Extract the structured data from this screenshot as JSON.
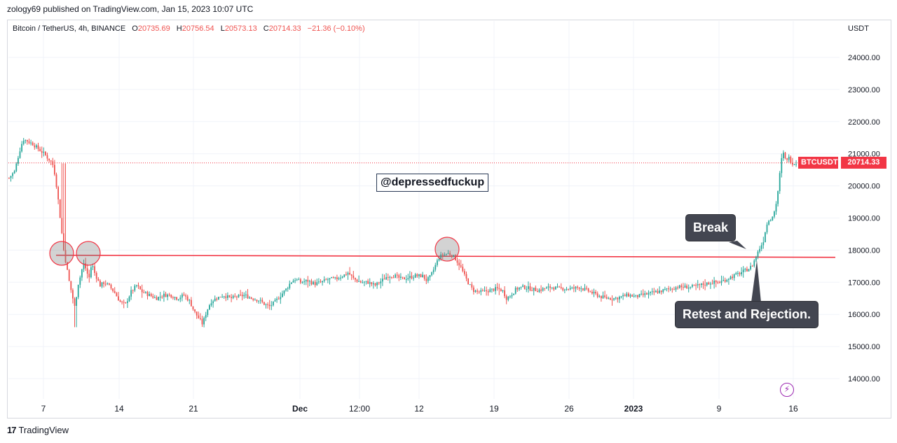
{
  "header": {
    "published": "zology69 published on TradingView.com, Jan 15, 2023 10:07 UTC"
  },
  "legend": {
    "symbol": "Bitcoin / TetherUS, 4h, BINANCE",
    "open_label": "O",
    "open": "20735.69",
    "high_label": "H",
    "high": "20756.54",
    "low_label": "L",
    "low": "20573.13",
    "close_label": "C",
    "close": "20714.33",
    "change": "−21.36 (−0.10%)"
  },
  "colors": {
    "up": "#26a69a",
    "down": "#ef5350",
    "level_line": "#f23645",
    "price_tag": "#f23645",
    "grid": "#f0f3fa"
  },
  "annotations": {
    "watermark": "@depressedfuckup",
    "break": "Break",
    "retest": "Retest and Rejection."
  },
  "price_tags": {
    "symbol_tag": "BTCUSDT",
    "last_price": "20714.33"
  },
  "footer": {
    "brand": "TradingView",
    "logo": "17"
  },
  "icons": {
    "lightning": "lightning-icon"
  },
  "chart_data": {
    "type": "candlestick",
    "y_axis_unit": "USDT",
    "ylim": [
      13700,
      25200
    ],
    "y_ticks": [
      "24000.00",
      "23000.00",
      "22000.00",
      "21000.00",
      "20000.00",
      "19000.00",
      "18000.00",
      "17000.00",
      "16000.00",
      "15000.00",
      "14000.00"
    ],
    "x_ticks": [
      "7",
      "14",
      "21",
      "Dec",
      "12:00",
      "12",
      "19",
      "26",
      "2023",
      "9",
      "16"
    ],
    "x_ticks_bold": [
      "Dec",
      "2023"
    ],
    "resistance_level": 17820,
    "last_price": 20714.33,
    "grid": true,
    "path_points": [
      [
        0,
        20250
      ],
      [
        8,
        20450
      ],
      [
        14,
        21000
      ],
      [
        20,
        21450
      ],
      [
        26,
        21400
      ],
      [
        34,
        21300
      ],
      [
        42,
        21150
      ],
      [
        50,
        21000
      ],
      [
        56,
        20850
      ],
      [
        62,
        20700
      ],
      [
        66,
        20300
      ],
      [
        70,
        19600
      ],
      [
        74,
        18800
      ],
      [
        78,
        18000
      ],
      [
        82,
        17500
      ],
      [
        86,
        17000
      ],
      [
        90,
        16600
      ],
      [
        94,
        16200
      ],
      [
        98,
        16900
      ],
      [
        102,
        17200
      ],
      [
        106,
        17600
      ],
      [
        110,
        17400
      ],
      [
        114,
        17100
      ],
      [
        118,
        17600
      ],
      [
        122,
        17300
      ],
      [
        126,
        17100
      ],
      [
        130,
        16900
      ],
      [
        136,
        17000
      ],
      [
        142,
        16900
      ],
      [
        150,
        16700
      ],
      [
        158,
        16400
      ],
      [
        166,
        16300
      ],
      [
        174,
        16700
      ],
      [
        182,
        16900
      ],
      [
        190,
        16700
      ],
      [
        200,
        16600
      ],
      [
        210,
        16500
      ],
      [
        220,
        16600
      ],
      [
        230,
        16600
      ],
      [
        240,
        16500
      ],
      [
        250,
        16600
      ],
      [
        258,
        16400
      ],
      [
        264,
        16100
      ],
      [
        270,
        15900
      ],
      [
        276,
        15700
      ],
      [
        282,
        16100
      ],
      [
        288,
        16400
      ],
      [
        296,
        16500
      ],
      [
        306,
        16600
      ],
      [
        316,
        16500
      ],
      [
        326,
        16550
      ],
      [
        336,
        16600
      ],
      [
        346,
        16500
      ],
      [
        356,
        16450
      ],
      [
        366,
        16300
      ],
      [
        372,
        16250
      ],
      [
        380,
        16400
      ],
      [
        388,
        16600
      ],
      [
        396,
        16800
      ],
      [
        402,
        17000
      ],
      [
        408,
        17100
      ],
      [
        416,
        17000
      ],
      [
        426,
        17050
      ],
      [
        436,
        16950
      ],
      [
        446,
        17000
      ],
      [
        456,
        17100
      ],
      [
        466,
        17100
      ],
      [
        476,
        17200
      ],
      [
        484,
        17300
      ],
      [
        492,
        17100
      ],
      [
        502,
        17000
      ],
      [
        512,
        17000
      ],
      [
        522,
        16900
      ],
      [
        532,
        17050
      ],
      [
        540,
        17200
      ],
      [
        550,
        17200
      ],
      [
        560,
        17100
      ],
      [
        570,
        17150
      ],
      [
        580,
        17200
      ],
      [
        590,
        17200
      ],
      [
        596,
        17050
      ],
      [
        602,
        17200
      ],
      [
        608,
        17500
      ],
      [
        614,
        17800
      ],
      [
        620,
        17850
      ],
      [
        626,
        17900
      ],
      [
        632,
        17850
      ],
      [
        638,
        17700
      ],
      [
        644,
        17500
      ],
      [
        650,
        17200
      ],
      [
        656,
        16950
      ],
      [
        662,
        16750
      ],
      [
        668,
        16700
      ],
      [
        676,
        16700
      ],
      [
        686,
        16750
      ],
      [
        696,
        16800
      ],
      [
        704,
        16750
      ],
      [
        710,
        16500
      ],
      [
        716,
        16600
      ],
      [
        724,
        16800
      ],
      [
        734,
        16850
      ],
      [
        744,
        16800
      ],
      [
        754,
        16750
      ],
      [
        764,
        16800
      ],
      [
        774,
        16850
      ],
      [
        784,
        16800
      ],
      [
        794,
        16800
      ],
      [
        804,
        16800
      ],
      [
        814,
        16850
      ],
      [
        824,
        16750
      ],
      [
        834,
        16650
      ],
      [
        844,
        16550
      ],
      [
        854,
        16500
      ],
      [
        864,
        16500
      ],
      [
        874,
        16550
      ],
      [
        884,
        16600
      ],
      [
        894,
        16550
      ],
      [
        904,
        16600
      ],
      [
        914,
        16650
      ],
      [
        924,
        16700
      ],
      [
        934,
        16750
      ],
      [
        944,
        16800
      ],
      [
        954,
        16850
      ],
      [
        964,
        16850
      ],
      [
        974,
        16850
      ],
      [
        984,
        16900
      ],
      [
        994,
        16950
      ],
      [
        1004,
        17000
      ],
      [
        1014,
        17000
      ],
      [
        1024,
        17100
      ],
      [
        1034,
        17200
      ],
      [
        1044,
        17300
      ],
      [
        1054,
        17400
      ],
      [
        1060,
        17500
      ],
      [
        1064,
        17700
      ],
      [
        1068,
        17900
      ],
      [
        1072,
        18100
      ],
      [
        1076,
        18250
      ],
      [
        1080,
        18700
      ],
      [
        1084,
        18950
      ],
      [
        1088,
        19000
      ],
      [
        1092,
        19200
      ],
      [
        1096,
        19600
      ],
      [
        1099,
        20200
      ],
      [
        1102,
        20800
      ],
      [
        1105,
        21000
      ],
      [
        1108,
        20800
      ],
      [
        1112,
        20900
      ],
      [
        1116,
        20750
      ],
      [
        1120,
        20700
      ],
      [
        1124,
        20714
      ]
    ]
  }
}
